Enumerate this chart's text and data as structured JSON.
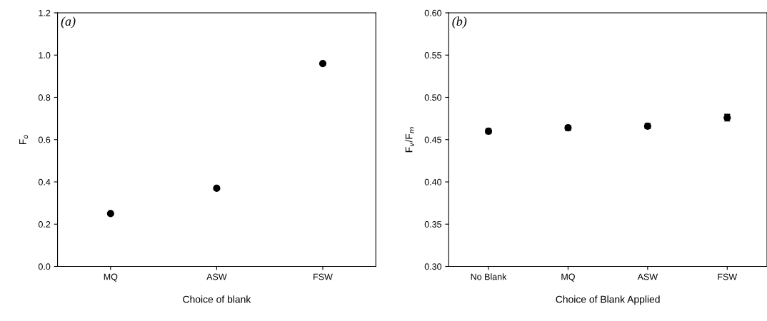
{
  "chart_data": [
    {
      "type": "scatter",
      "xlabel": "Choice of blank",
      "ylabel": "F$_{o}$",
      "categories": [
        "MQ",
        "ASW",
        "FSW"
      ],
      "values": [
        0.25,
        0.37,
        0.96
      ],
      "color": "#000000",
      "marker": "circle",
      "ylim": [
        0,
        1.2
      ],
      "yticks": [
        {
          "value": 0,
          "label": "0.0"
        },
        0.2,
        0.4,
        0.6,
        0.8,
        {
          "value": 1,
          "label": "1.0"
        },
        1.2
      ],
      "grid": false,
      "annotations": [
        "(a)"
      ]
    },
    {
      "type": "scatter",
      "xlabel": "Choice of Blank Applied",
      "ylabel": "F$_{v}$/F$_{m}$",
      "categories": [
        "No Blank",
        "MQ",
        "ASW",
        "FSW"
      ],
      "values": [
        0.46,
        0.464,
        0.466,
        0.476
      ],
      "errors": [
        0.003,
        0.003,
        0.003,
        0.004
      ],
      "color": "#000000",
      "marker": "circle",
      "ylim": [
        0.3,
        0.6
      ],
      "yticks": [
        {
          "value": 0.3,
          "label": "0.30"
        },
        0.35,
        {
          "value": 0.4,
          "label": "0.40"
        },
        0.45,
        {
          "value": 0.5,
          "label": "0.50"
        },
        0.55,
        {
          "value": 0.6,
          "label": "0.60"
        }
      ],
      "grid": false,
      "annotations": [
        "(b)"
      ]
    }
  ]
}
